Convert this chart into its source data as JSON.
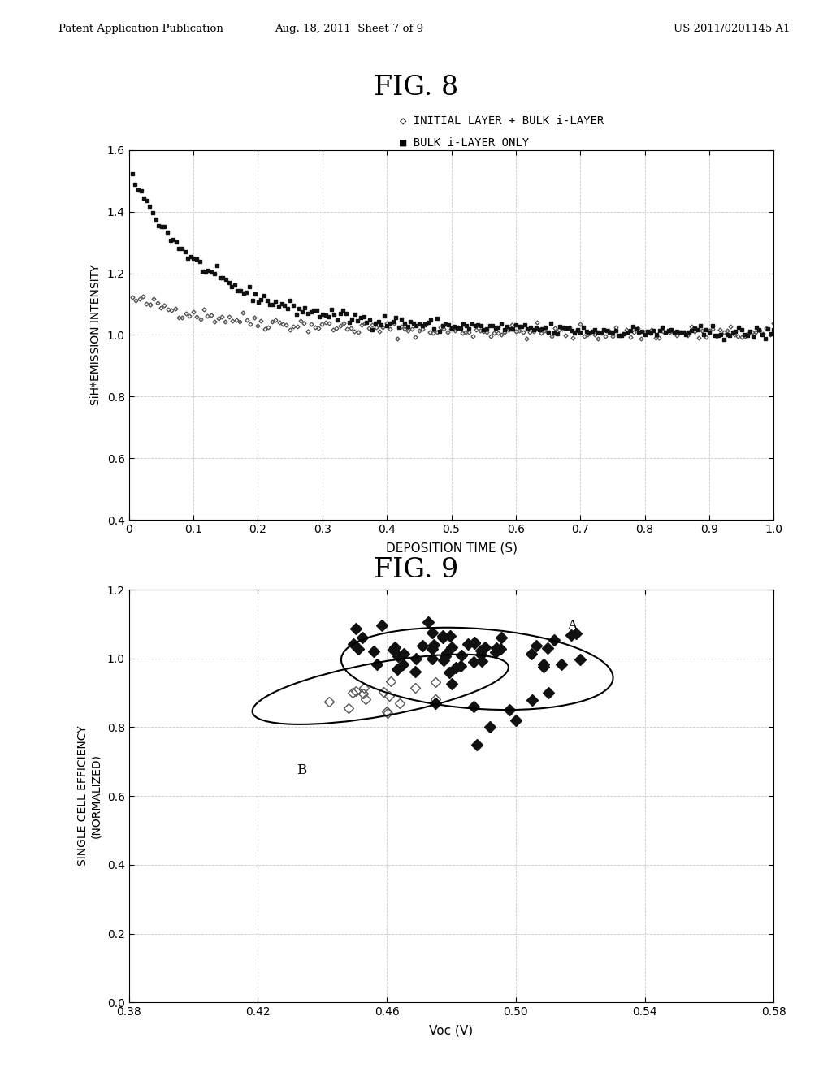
{
  "fig8_title": "FIG. 8",
  "fig9_title": "FIG. 9",
  "header_left": "Patent Application Publication",
  "header_mid": "Aug. 18, 2011  Sheet 7 of 9",
  "header_right": "US 2011/0201145 A1",
  "fig8_xlabel": "DEPOSITION TIME (S)",
  "fig8_ylabel": "SiH*EMISSION INTENSITY",
  "fig8_xlim": [
    0,
    1.0
  ],
  "fig8_ylim": [
    0.4,
    1.6
  ],
  "fig8_xticks": [
    0,
    0.1,
    0.2,
    0.3,
    0.4,
    0.5,
    0.6,
    0.7,
    0.8,
    0.9,
    1
  ],
  "fig8_yticks": [
    0.4,
    0.6,
    0.8,
    1.0,
    1.2,
    1.4,
    1.6
  ],
  "fig8_legend1": "INITIAL LAYER + BULK i-LAYER",
  "fig8_legend2": "BULK i-LAYER ONLY",
  "fig9_xlabel": "Voc (V)",
  "fig9_ylabel": "SINGLE CELL EFFICIENCY\n(NORMALIZED)",
  "fig9_xlim": [
    0.38,
    0.58
  ],
  "fig9_ylim": [
    0.0,
    1.2
  ],
  "fig9_xticks": [
    0.38,
    0.42,
    0.46,
    0.5,
    0.54,
    0.58
  ],
  "fig9_yticks": [
    0.0,
    0.2,
    0.4,
    0.6,
    0.8,
    1.0,
    1.2
  ],
  "background_color": "#ffffff",
  "grid_color": "#bbbbbb",
  "text_color": "#000000"
}
